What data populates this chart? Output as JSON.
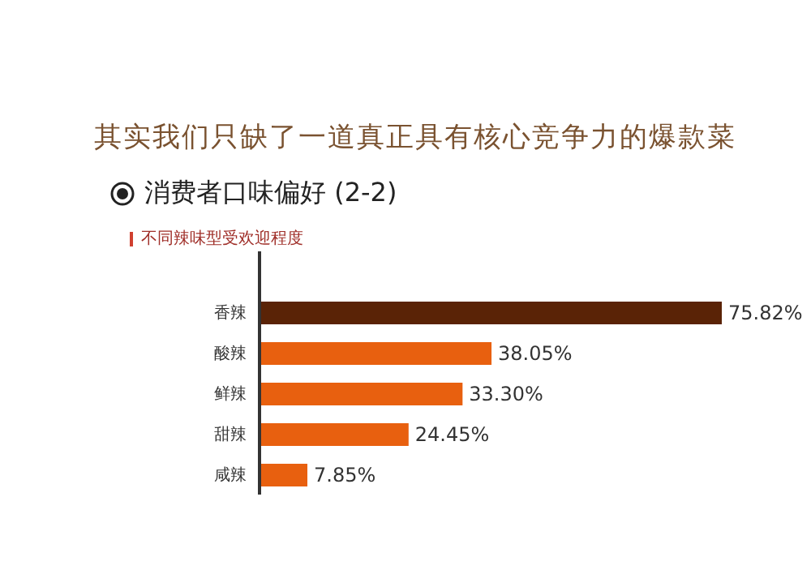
{
  "chart_data": {
    "type": "bar",
    "orientation": "horizontal",
    "title": "其实我们只缺了一道真正具有核心竞争力的爆款菜",
    "subtitle": "消费者口味偏好 (2-2)",
    "annotations": [
      "不同辣味型受欢迎程度"
    ],
    "categories": [
      null,
      "香辣",
      "酸辣",
      "鲜辣",
      "甜辣",
      "咸辣"
    ],
    "values": [
      null,
      75.82,
      38.05,
      33.3,
      24.45,
      7.85
    ],
    "value_labels": [
      null,
      "75.82%",
      "38.05%",
      "33.30%",
      "24.45%",
      "7.85%"
    ],
    "colors": [
      "#e8600f",
      "#5a2306",
      "#e8600f",
      "#e8600f",
      "#e8600f",
      "#e8600f"
    ],
    "tick_labels": "y",
    "grid": false
  }
}
